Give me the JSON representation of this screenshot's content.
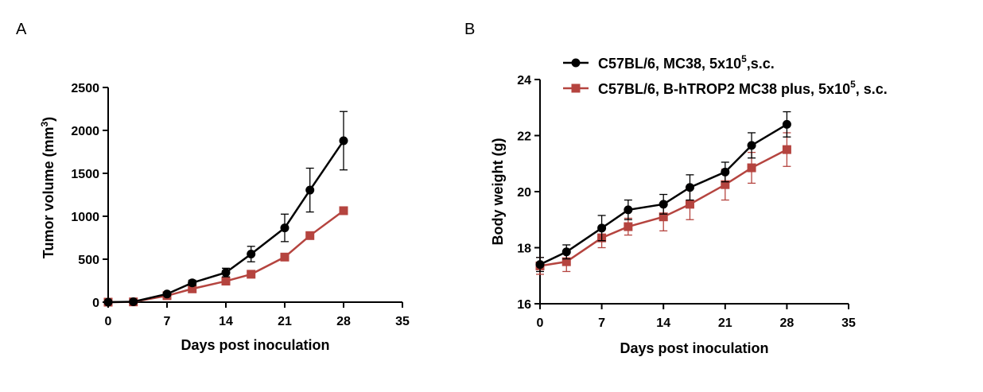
{
  "panels": {
    "a": {
      "letter": "A"
    },
    "b": {
      "letter": "B"
    }
  },
  "chart_data": [
    {
      "type": "line",
      "panel": "A",
      "title": "",
      "xlabel": "Days post inoculation",
      "ylabel_main": "Tumor volume (mm",
      "ylabel_sup": "3",
      "ylabel_end": ")",
      "xlim": [
        0,
        35
      ],
      "ylim": [
        0,
        2500
      ],
      "xticks": [
        0,
        7,
        14,
        21,
        28,
        35
      ],
      "yticks": [
        0,
        500,
        1000,
        1500,
        2000,
        2500
      ],
      "x": [
        0,
        3,
        7,
        10,
        14,
        17,
        21,
        24,
        28
      ],
      "series": [
        {
          "key": "mc38",
          "color": "#000000",
          "marker": "circle",
          "values": [
            0,
            5,
            95,
            225,
            345,
            560,
            865,
            1305,
            1880
          ],
          "errors": [
            0,
            10,
            20,
            30,
            50,
            90,
            160,
            255,
            340
          ]
        },
        {
          "key": "htrop2",
          "color": "#b5443f",
          "marker": "square",
          "values": [
            0,
            3,
            75,
            155,
            245,
            325,
            525,
            775,
            1065
          ],
          "errors": [
            0,
            5,
            12,
            18,
            25,
            30,
            35,
            30,
            25
          ]
        }
      ],
      "grid": false
    },
    {
      "type": "line",
      "panel": "B",
      "title": "",
      "xlabel": "Days post inoculation",
      "ylabel": "Body weight (g)",
      "xlim": [
        0,
        35
      ],
      "ylim": [
        16,
        24
      ],
      "xticks": [
        0,
        7,
        14,
        21,
        28,
        35
      ],
      "yticks": [
        16,
        18,
        20,
        22,
        24
      ],
      "x": [
        0,
        3,
        7,
        10,
        14,
        17,
        21,
        24,
        28
      ],
      "series": [
        {
          "key": "mc38",
          "name": "C57BL/6, MC38, 5x10",
          "name_sup": "5",
          "name_end": ",s.c.",
          "color": "#000000",
          "marker": "circle",
          "values": [
            17.4,
            17.85,
            18.7,
            19.35,
            19.55,
            20.15,
            20.7,
            21.65,
            22.4
          ],
          "errors": [
            0.25,
            0.25,
            0.45,
            0.35,
            0.35,
            0.45,
            0.35,
            0.45,
            0.45
          ]
        },
        {
          "key": "htrop2",
          "name": "C57BL/6, B-hTROP2 MC38 plus, 5x10",
          "name_sup": "5",
          "name_end": ", s.c.",
          "color": "#b5443f",
          "marker": "square",
          "values": [
            17.35,
            17.5,
            18.35,
            18.75,
            19.1,
            19.55,
            20.25,
            20.85,
            21.5
          ],
          "errors": [
            0.3,
            0.35,
            0.35,
            0.3,
            0.5,
            0.55,
            0.55,
            0.55,
            0.6
          ]
        }
      ],
      "grid": false,
      "legend": "top"
    }
  ]
}
